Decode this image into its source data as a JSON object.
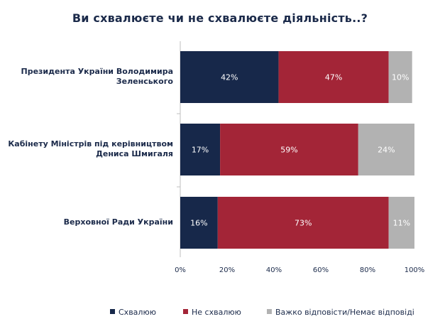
{
  "chart_data": {
    "type": "bar",
    "orientation": "horizontal",
    "stacked": true,
    "title": "Ви схвалюєте чи не схвалюєте діяльність..?",
    "categories": [
      "Президента України Володимира Зеленського",
      "Кабінету Міністрів під керівництвом Дениса Шмигаля",
      "Верховної Ради України"
    ],
    "series": [
      {
        "name": "Схвалюю",
        "color": "#17284a",
        "values": [
          42,
          17,
          16
        ],
        "labels": [
          "42%",
          "17%",
          "16%"
        ]
      },
      {
        "name": "Не схвалюю",
        "color": "#a32537",
        "values": [
          47,
          59,
          73
        ],
        "labels": [
          "47%",
          "59%",
          "73%"
        ]
      },
      {
        "name": "Важко відповісти/Немає відповіді",
        "color": "#b2b2b2",
        "values": [
          10,
          24,
          11
        ],
        "labels": [
          "10%",
          "24%",
          "11%"
        ]
      }
    ],
    "xlim": [
      0,
      100
    ],
    "xticks": [
      "0%",
      "20%",
      "40%",
      "60%",
      "80%",
      "100%"
    ],
    "legend_position": "bottom",
    "grid": false
  }
}
